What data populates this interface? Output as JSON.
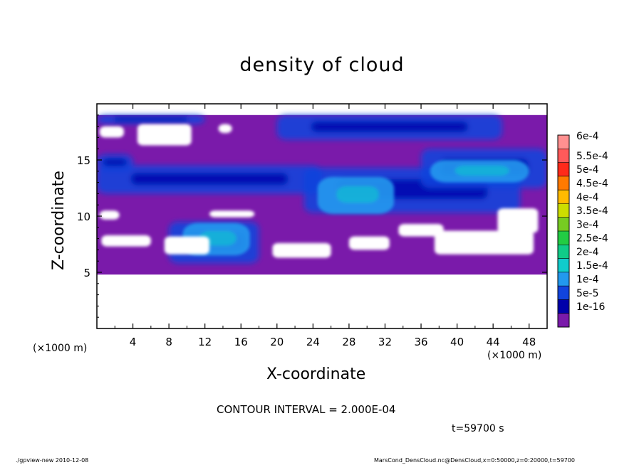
{
  "chart_data": {
    "type": "heatmap",
    "title": "density of cloud",
    "xlabel": "X-coordinate",
    "ylabel": "Z-coordinate",
    "x_unit_label": "(×1000 m)",
    "xlim": [
      0,
      50
    ],
    "ylim": [
      0,
      20
    ],
    "x_ticks": [
      4,
      8,
      12,
      16,
      20,
      24,
      28,
      32,
      36,
      40,
      44,
      48
    ],
    "y_ticks": [
      5,
      10,
      15
    ],
    "data_extent": {
      "x": [
        0,
        50
      ],
      "z": [
        4.8,
        19.0
      ]
    },
    "colorbar": {
      "labels": [
        "6e-4",
        "5.5e-4",
        "5e-4",
        "4.5e-4",
        "4e-4",
        "3.5e-4",
        "3e-4",
        "2.5e-4",
        "2e-4",
        "1.5e-4",
        "1e-4",
        "5e-5",
        "1e-16"
      ],
      "colors": [
        "#ff9090",
        "#ff5a5a",
        "#ff2a1a",
        "#ff7a00",
        "#ffbb00",
        "#ccdd00",
        "#77cc22",
        "#22cc44",
        "#10cc88",
        "#10cccc",
        "#2299ee",
        "#1144dd",
        "#0000aa",
        "#7a1aaa"
      ]
    },
    "regions": {
      "background_level": "1e-16",
      "clear_patches": [
        {
          "x": [
            4.5,
            10.5
          ],
          "z": [
            16.3,
            18.2
          ]
        },
        {
          "x": [
            0.3,
            3.0
          ],
          "z": [
            17.0,
            18.0
          ]
        },
        {
          "x": [
            0.5,
            6.0
          ],
          "z": [
            7.3,
            8.3
          ]
        },
        {
          "x": [
            7.5,
            12.5
          ],
          "z": [
            6.6,
            8.2
          ]
        },
        {
          "x": [
            19.5,
            26.0
          ],
          "z": [
            6.3,
            7.6
          ]
        },
        {
          "x": [
            28.0,
            32.5
          ],
          "z": [
            7.0,
            8.2
          ]
        },
        {
          "x": [
            37.5,
            48.5
          ],
          "z": [
            6.6,
            8.7
          ]
        },
        {
          "x": [
            44.5,
            49.0
          ],
          "z": [
            8.5,
            10.7
          ]
        },
        {
          "x": [
            33.5,
            38.5
          ],
          "z": [
            8.2,
            9.3
          ]
        },
        {
          "x": [
            0.3,
            2.5
          ],
          "z": [
            9.7,
            10.5
          ]
        },
        {
          "x": [
            12.5,
            17.5
          ],
          "z": [
            9.9,
            10.5
          ]
        },
        {
          "x": [
            13.5,
            15.0
          ],
          "z": [
            17.4,
            18.2
          ]
        }
      ],
      "low_density_5e-5": [
        {
          "x": [
            0.0,
            12.0
          ],
          "z": [
            18.2,
            19.0
          ]
        },
        {
          "x": [
            20.0,
            45.0
          ],
          "z": [
            16.8,
            19.0
          ]
        },
        {
          "x": [
            0.0,
            25.0
          ],
          "z": [
            12.0,
            14.5
          ]
        },
        {
          "x": [
            23.0,
            47.0
          ],
          "z": [
            10.3,
            14.3
          ]
        },
        {
          "x": [
            36.0,
            50.0
          ],
          "z": [
            12.5,
            16.0
          ]
        },
        {
          "x": [
            8.0,
            18.0
          ],
          "z": [
            5.8,
            9.5
          ]
        },
        {
          "x": [
            0.0,
            4.0
          ],
          "z": [
            14.0,
            15.5
          ]
        }
      ],
      "mid_density_1e-4_to_1.5e-4": [
        {
          "x": [
            24.5,
            33.0
          ],
          "z": [
            10.2,
            13.5
          ]
        },
        {
          "x": [
            9.5,
            17.0
          ],
          "z": [
            6.5,
            9.4
          ]
        },
        {
          "x": [
            37.0,
            48.0
          ],
          "z": [
            13.0,
            15.0
          ]
        }
      ]
    }
  },
  "contour_interval_text": "CONTOUR INTERVAL = 2.000E-04",
  "time_text": "t=59700 s",
  "footer": {
    "left": "./gpview-new   2010-12-08",
    "right": "MarsCond_DensCloud.nc@DensCloud,x=0:50000,z=0:20000,t=59700"
  }
}
